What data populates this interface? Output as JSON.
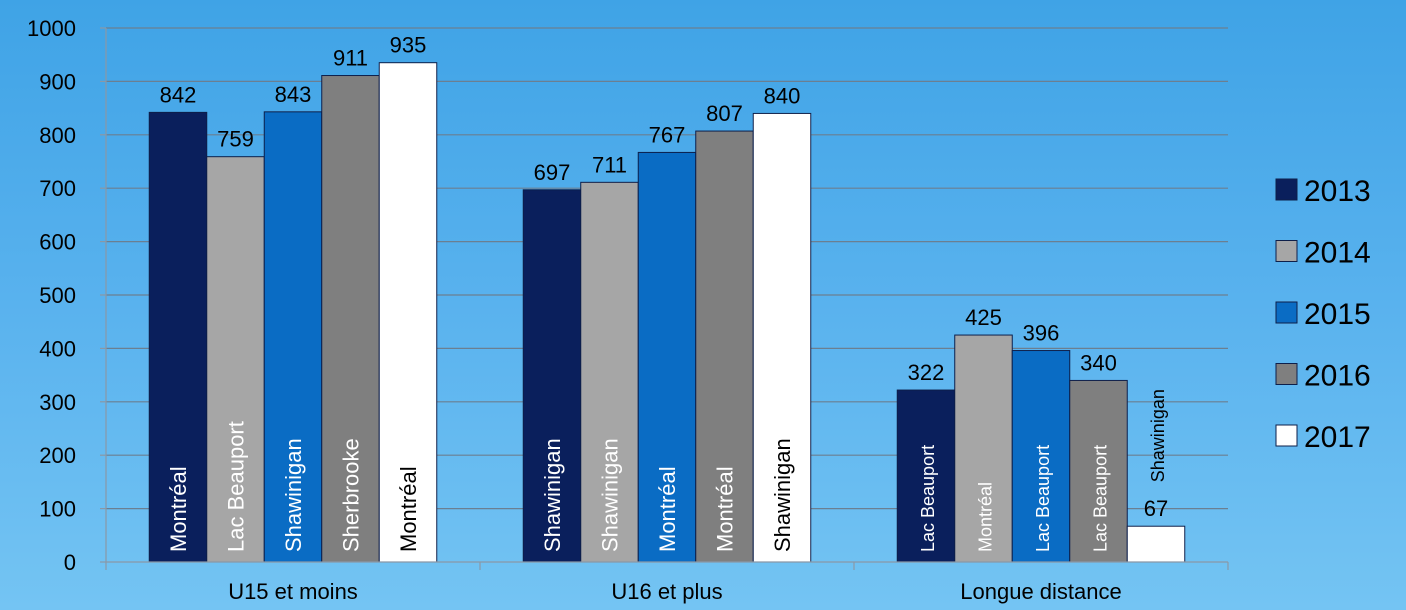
{
  "chart_data": {
    "type": "bar",
    "categories": [
      "U15 et moins",
      "U16 et plus",
      "Longue distance"
    ],
    "ylim": [
      0,
      1000
    ],
    "yticks": [
      0,
      100,
      200,
      300,
      400,
      500,
      600,
      700,
      800,
      900,
      1000
    ],
    "grid": true,
    "legend_position": "right",
    "series": [
      {
        "name": "2013",
        "color": "#0a1f5c",
        "values": [
          842,
          697,
          322
        ],
        "bar_labels": [
          "Montréal",
          "Shawinigan",
          "Lac Beauport"
        ]
      },
      {
        "name": "2014",
        "color": "#a6a6a6",
        "values": [
          759,
          711,
          425
        ],
        "bar_labels": [
          "Lac Beauport",
          "Shawinigan",
          "Montréal"
        ]
      },
      {
        "name": "2015",
        "color": "#0a6cc4",
        "values": [
          843,
          767,
          396
        ],
        "bar_labels": [
          "Shawinigan",
          "Montréal",
          "Lac Beauport"
        ]
      },
      {
        "name": "2016",
        "color": "#7f7f7f",
        "values": [
          911,
          807,
          340
        ],
        "bar_labels": [
          "Sherbrooke",
          "Montréal",
          "Lac Beauport"
        ]
      },
      {
        "name": "2017",
        "color": "#ffffff",
        "values": [
          935,
          840,
          67
        ],
        "bar_labels": [
          "Montréal",
          "Shawinigan",
          "Shawinigan"
        ]
      }
    ]
  }
}
